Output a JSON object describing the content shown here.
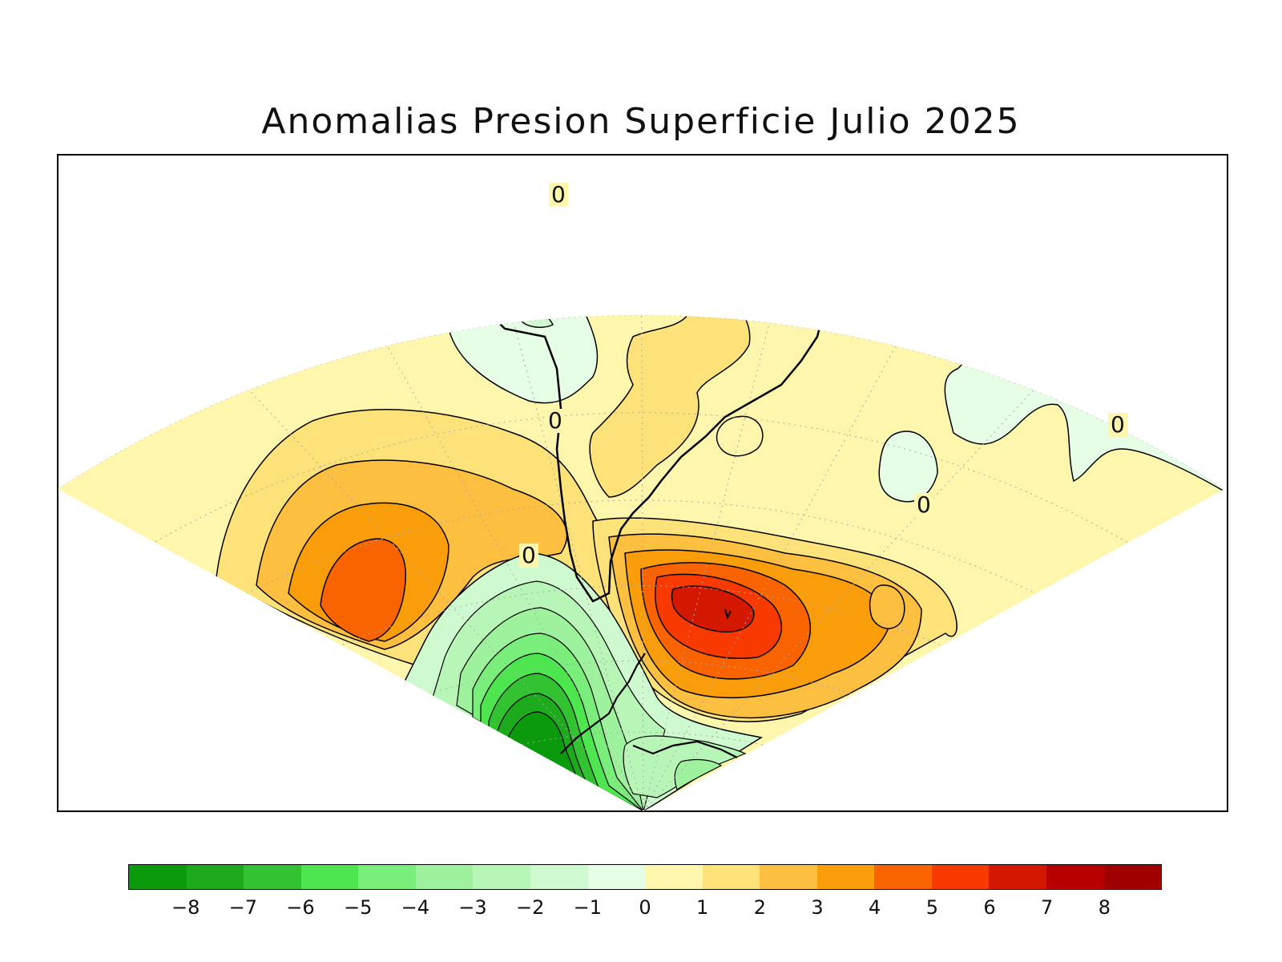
{
  "title": "Anomalias Presion Superficie Julio 2025",
  "map": {
    "region": "South America / Southern Ocean sector",
    "contour_labels": [
      {
        "id": "c1",
        "text": "0"
      },
      {
        "id": "c2",
        "text": "0"
      },
      {
        "id": "c3",
        "text": "0"
      },
      {
        "id": "c4",
        "text": "0"
      },
      {
        "id": "c5",
        "text": "0"
      }
    ]
  },
  "legend": {
    "colors": [
      "#0b9a0b",
      "#1daa1d",
      "#32c232",
      "#4ee64e",
      "#7aee7a",
      "#9ef29e",
      "#b8f6b8",
      "#cffacf",
      "#e6fde6",
      "#fff6ad",
      "#fde27a",
      "#fdbf3f",
      "#fa9d0a",
      "#f96400",
      "#f93a00",
      "#d41800",
      "#b80000",
      "#a00000"
    ],
    "labels": [
      "−8",
      "−7",
      "−6",
      "−5",
      "−4",
      "−3",
      "−2",
      "−1",
      "0",
      "1",
      "2",
      "3",
      "4",
      "5",
      "6",
      "7",
      "8"
    ]
  }
}
